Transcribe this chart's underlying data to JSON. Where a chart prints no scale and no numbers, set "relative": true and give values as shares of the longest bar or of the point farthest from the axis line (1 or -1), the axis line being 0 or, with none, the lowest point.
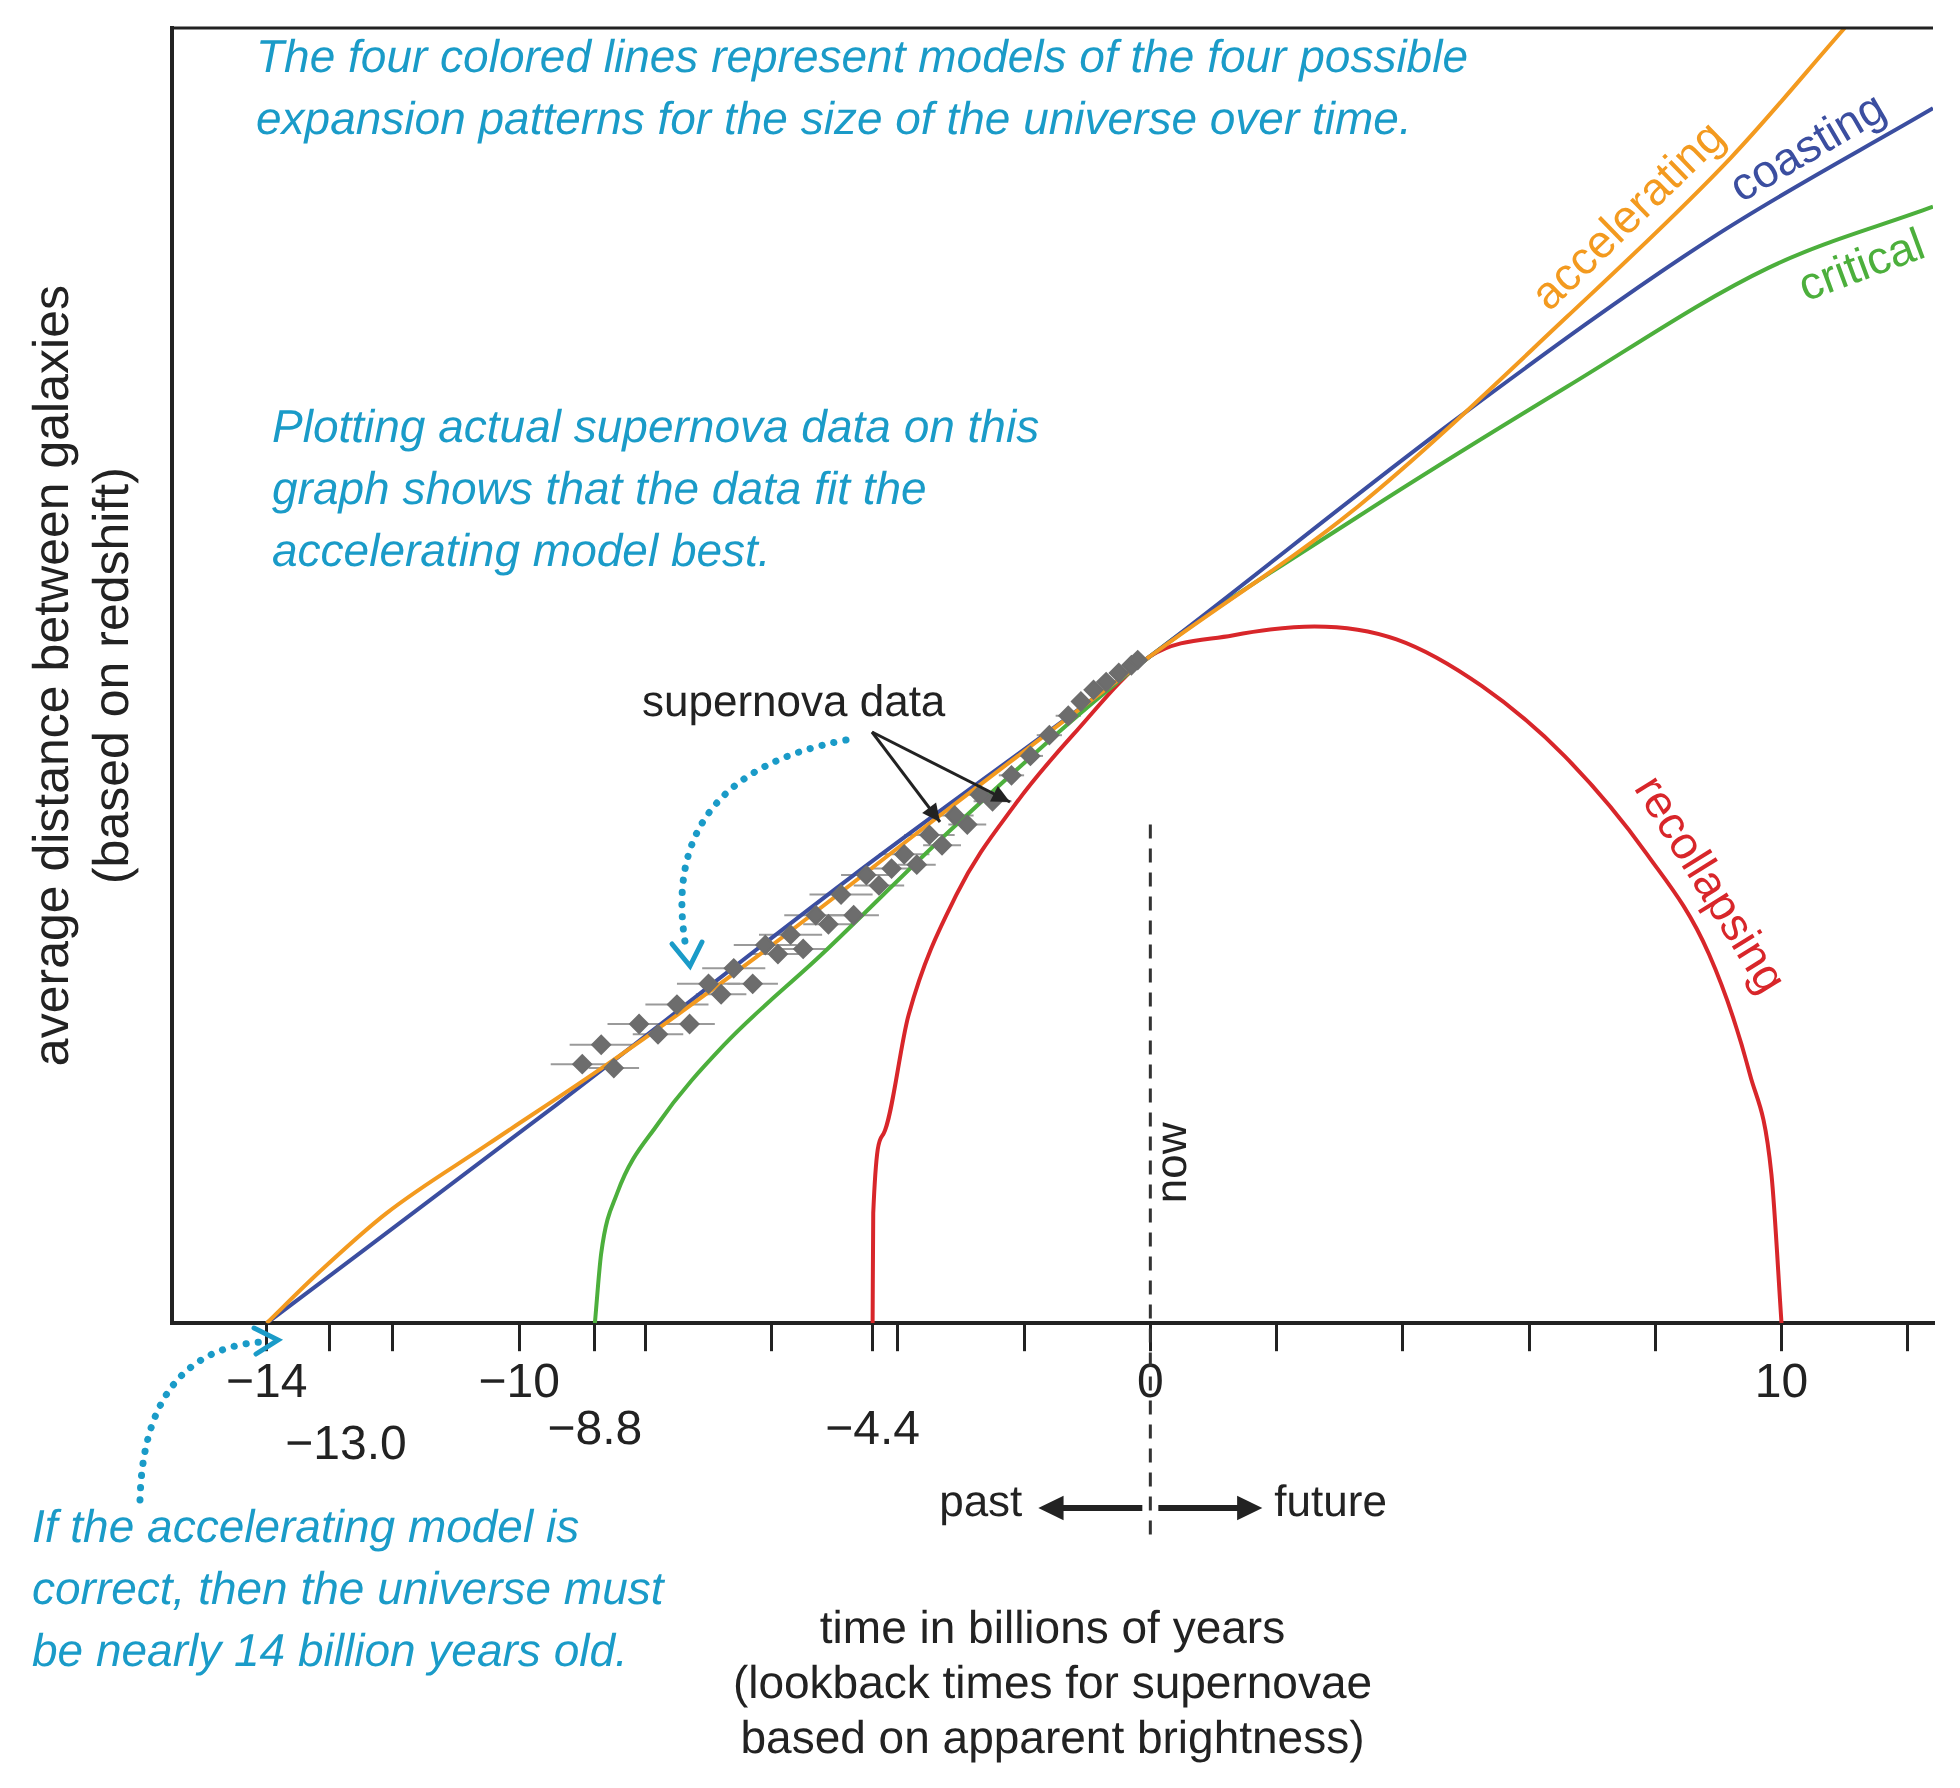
{
  "chart_data": {
    "type": "line",
    "relative": true,
    "xlabel": "time in billions of years\n(lookback times for supernovae\nbased on apparent brightness)",
    "ylabel": "average distance between galaxies\n(based on redshift)",
    "xlim": [
      -15.5,
      12.4
    ],
    "xticks": [
      {
        "value": -14,
        "label": "−14"
      },
      {
        "value": -13.0,
        "label": null
      },
      {
        "value": -12,
        "label": null
      },
      {
        "value": -10,
        "label": "−10"
      },
      {
        "value": -8.8,
        "label": null
      },
      {
        "value": -8,
        "label": null
      },
      {
        "value": -6,
        "label": null
      },
      {
        "value": -4.4,
        "label": null
      },
      {
        "value": -4,
        "label": null
      },
      {
        "value": -2,
        "label": null
      },
      {
        "value": 0,
        "label": "0"
      },
      {
        "value": 2,
        "label": null
      },
      {
        "value": 4,
        "label": null
      },
      {
        "value": 6,
        "label": null
      },
      {
        "value": 8,
        "label": null
      },
      {
        "value": 10,
        "label": "10"
      },
      {
        "value": 12,
        "label": null
      }
    ],
    "grid": false,
    "legend": false,
    "marker": "diamond",
    "series": [
      {
        "name": "accelerating",
        "color": "#f39a1f",
        "marker": "none",
        "x": [
          -14,
          -13.2,
          -12.1,
          -10.5,
          -8.6,
          -6.4,
          -3.2,
          0,
          3.3,
          6.6,
          9.2,
          11
        ],
        "values": [
          0,
          0.038,
          0.085,
          0.138,
          0.2,
          0.277,
          0.397,
          0.515,
          0.631,
          0.777,
          0.9,
          1
        ]
      },
      {
        "name": "coasting",
        "color": "#3b4ea0",
        "marker": "none",
        "x": [
          -14,
          -9.4,
          -4.7,
          0,
          4.9,
          8.9,
          12.4
        ],
        "values": [
          0,
          0.169,
          0.346,
          0.515,
          0.7,
          0.838,
          0.938
        ]
      },
      {
        "name": "critical",
        "color": "#4caf3c",
        "marker": "none",
        "x": [
          -8.8,
          -8.7,
          -8.45,
          -7.8,
          -6.75,
          -5.2,
          -3.07,
          0,
          3.3,
          6.6,
          9.8,
          12.4
        ],
        "values": [
          0,
          0.054,
          0.1,
          0.154,
          0.215,
          0.285,
          0.385,
          0.515,
          0.623,
          0.723,
          0.815,
          0.862
        ]
      },
      {
        "name": "recollapsing",
        "color": "#d8262a",
        "marker": "none",
        "x": [
          -4.4,
          -4.39,
          -4.23,
          -3.83,
          -3.07,
          -2.15,
          -1.23,
          0,
          1.3,
          2.6,
          3.9,
          5.25,
          6.56,
          7.87,
          8.85,
          9.5,
          9.84,
          10
        ],
        "values": [
          0,
          0.085,
          0.146,
          0.238,
          0.331,
          0.4,
          0.454,
          0.515,
          0.531,
          0.538,
          0.528,
          0.492,
          0.438,
          0.362,
          0.285,
          0.192,
          0.115,
          0
        ]
      },
      {
        "type": "scatter",
        "color": "#6d6d6d",
        "x": [
          -9.0,
          -8.7,
          -8.5,
          -8.1,
          -7.8,
          -7.5,
          -7.3,
          -7.0,
          -6.8,
          -6.6,
          -6.3,
          -6.1,
          -5.9,
          -5.7,
          -5.5,
          -5.3,
          -5.1,
          -4.9,
          -4.7,
          -4.5,
          -4.3,
          -4.1,
          -3.9,
          -3.7,
          -3.5,
          -3.3,
          -3.1,
          -2.9,
          -2.7,
          -2.5,
          -2.2,
          -1.9,
          -1.6,
          -1.3,
          -1.1,
          -0.9,
          -0.7,
          -0.5,
          -0.3,
          -0.2
        ],
        "values": [
          0.2,
          0.215,
          0.197,
          0.231,
          0.223,
          0.246,
          0.231,
          0.262,
          0.254,
          0.274,
          0.262,
          0.292,
          0.285,
          0.3,
          0.289,
          0.315,
          0.308,
          0.331,
          0.315,
          0.346,
          0.338,
          0.351,
          0.362,
          0.354,
          0.377,
          0.369,
          0.392,
          0.385,
          0.408,
          0.403,
          0.423,
          0.438,
          0.454,
          0.469,
          0.48,
          0.489,
          0.495,
          0.502,
          0.508,
          0.512
        ],
        "xerrors": [
          0.5,
          0.5,
          0.4,
          0.5,
          0.4,
          0.5,
          0.4,
          0.5,
          0.4,
          0.5,
          0.4,
          0.5,
          0.4,
          0.5,
          0.4,
          0.5,
          0.4,
          0.5,
          0.4,
          0.4,
          0.4,
          0.4,
          0.4,
          0.3,
          0.4,
          0.3,
          0.3,
          0.3,
          0.3,
          0.3,
          0.2,
          0.2,
          0.2,
          0.2,
          0.1,
          0.1,
          0.1,
          0.1,
          0.1,
          0.1
        ]
      }
    ],
    "ref_lines": [
      {
        "axis": "x",
        "value": 0,
        "label": "now",
        "line_style": "dashed",
        "color": "#333333"
      }
    ],
    "annotations": [
      "The four colored lines represent models of the four possible expansion patterns for the size of the universe over time.",
      "Plotting actual supernova data on this graph shows that the data fit the accelerating model best.",
      "If the accelerating model is correct, then the universe must be nearly 14 billion years old.",
      "supernova data",
      "past",
      "future",
      "−13.0",
      {
        "text": "−8.8",
        "x": -8.8,
        "y": 0
      },
      {
        "text": "−4.4",
        "x": -4.4,
        "y": 0
      }
    ]
  }
}
